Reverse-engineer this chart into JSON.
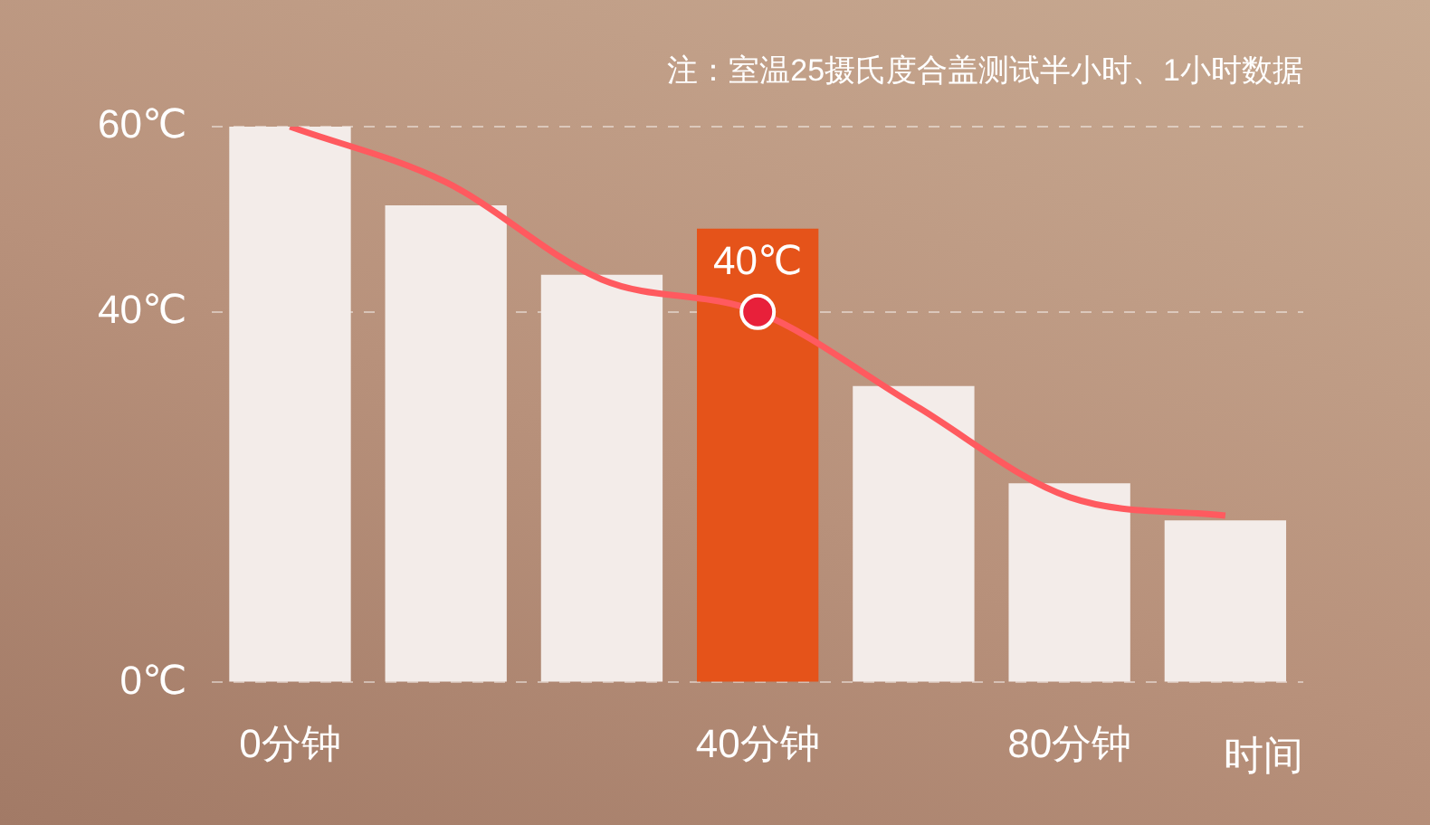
{
  "chart_data": {
    "type": "bar",
    "categories": [
      "0分钟",
      null,
      null,
      "40分钟",
      null,
      "80分钟",
      null
    ],
    "xlabel": "时间",
    "series": [
      {
        "colors": [
          "#f3ece9",
          "#f3ece9",
          "#f3ece9",
          "#e5531a",
          "#f3ece9",
          "#f3ece9",
          "#f3ece9"
        ],
        "values": [
          60,
          51.5,
          44,
          49,
          32,
          21.5,
          17.5
        ]
      },
      {
        "type": "line",
        "color": "#ff5a5f",
        "values": [
          60,
          54,
          43.5,
          40,
          30,
          20,
          18
        ]
      },
      {
        "type": "scatter",
        "color": "#e8203a",
        "x": [
          "40分钟"
        ],
        "values": [
          40
        ]
      }
    ],
    "ylim": [
      0,
      60
    ],
    "yticks": [
      {
        "value": 0,
        "label": "0℃"
      },
      {
        "value": 40,
        "label": "40℃"
      },
      {
        "value": 60,
        "label": "60℃"
      }
    ],
    "grid": "y",
    "legend": false,
    "annotations": [
      "注：室温25摄氏度合盖测试半小时、1小时数据",
      {
        "text": "40℃",
        "x": "40分钟",
        "y": 40
      }
    ]
  }
}
